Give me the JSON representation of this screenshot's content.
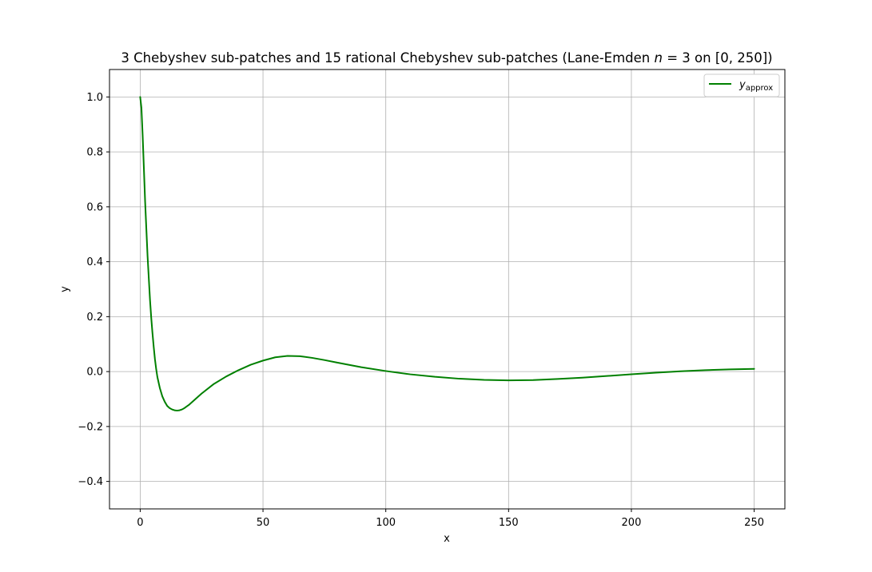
{
  "chart_data": {
    "type": "line",
    "title_parts": {
      "prefix": "3 Chebyshev sub-patches and 15 rational Chebyshev sub-patches (Lane-Emden ",
      "var_n": "n",
      "equals": " = 3 on [0, 250])"
    },
    "xlabel": "x",
    "ylabel": "y",
    "xlim": [
      -12.5,
      262.5
    ],
    "ylim": [
      -0.5,
      1.1
    ],
    "xticks": [
      0,
      50,
      100,
      150,
      200,
      250
    ],
    "yticks": [
      -0.4,
      -0.2,
      0.0,
      0.2,
      0.4,
      0.6,
      0.8,
      1.0
    ],
    "ytick_labels": [
      "−0.4",
      "−0.2",
      "0.0",
      "0.2",
      "0.4",
      "0.6",
      "0.8",
      "1.0"
    ],
    "xtick_labels": [
      "0",
      "50",
      "100",
      "150",
      "200",
      "250"
    ],
    "grid": true,
    "legend_position": "top-right",
    "series": [
      {
        "name": "y_approx",
        "legend_main": "y",
        "legend_sub": "approx",
        "color": "#008000",
        "points": [
          [
            0,
            1.0
          ],
          [
            0.5,
            0.96
          ],
          [
            1,
            0.86
          ],
          [
            1.5,
            0.74
          ],
          [
            2,
            0.62
          ],
          [
            2.5,
            0.52
          ],
          [
            3,
            0.42
          ],
          [
            3.5,
            0.34
          ],
          [
            4,
            0.26
          ],
          [
            4.5,
            0.195
          ],
          [
            5,
            0.14
          ],
          [
            5.5,
            0.09
          ],
          [
            6,
            0.045
          ],
          [
            6.5,
            0.01
          ],
          [
            7,
            -0.02
          ],
          [
            8,
            -0.06
          ],
          [
            9,
            -0.09
          ],
          [
            10,
            -0.11
          ],
          [
            11,
            -0.125
          ],
          [
            12,
            -0.133
          ],
          [
            13,
            -0.138
          ],
          [
            14,
            -0.141
          ],
          [
            15,
            -0.142
          ],
          [
            16,
            -0.141
          ],
          [
            17,
            -0.138
          ],
          [
            18,
            -0.133
          ],
          [
            20,
            -0.12
          ],
          [
            22,
            -0.104
          ],
          [
            25,
            -0.08
          ],
          [
            30,
            -0.045
          ],
          [
            35,
            -0.018
          ],
          [
            40,
            0.005
          ],
          [
            45,
            0.025
          ],
          [
            50,
            0.04
          ],
          [
            55,
            0.052
          ],
          [
            60,
            0.057
          ],
          [
            65,
            0.056
          ],
          [
            70,
            0.05
          ],
          [
            75,
            0.042
          ],
          [
            80,
            0.033
          ],
          [
            90,
            0.016
          ],
          [
            100,
            0.002
          ],
          [
            110,
            -0.01
          ],
          [
            120,
            -0.019
          ],
          [
            130,
            -0.026
          ],
          [
            140,
            -0.03
          ],
          [
            150,
            -0.032
          ],
          [
            160,
            -0.031
          ],
          [
            170,
            -0.027
          ],
          [
            180,
            -0.022
          ],
          [
            190,
            -0.016
          ],
          [
            200,
            -0.01
          ],
          [
            210,
            -0.004
          ],
          [
            220,
            0.001
          ],
          [
            230,
            0.005
          ],
          [
            240,
            0.008
          ],
          [
            250,
            0.01
          ]
        ]
      }
    ]
  }
}
